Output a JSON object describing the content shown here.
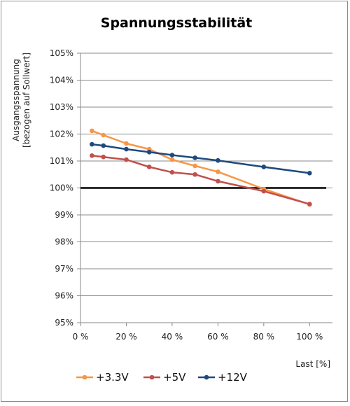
{
  "chart_data": {
    "type": "line",
    "title": "Spannungsstabilität",
    "xlabel": "Last [%]",
    "ylabel_lines": [
      "Ausgangsspannung",
      "[bezogen auf Sollwert]"
    ],
    "xlim": [
      0,
      110
    ],
    "ylim": [
      95,
      105
    ],
    "x_ticks": [
      0,
      20,
      40,
      60,
      80,
      100
    ],
    "x_tick_labels": [
      "0 %",
      "20 %",
      "40 %",
      "60 %",
      "80 %",
      "100 %"
    ],
    "y_ticks": [
      95,
      96,
      97,
      98,
      99,
      100,
      101,
      102,
      103,
      104,
      105
    ],
    "y_tick_labels": [
      "95%",
      "96%",
      "97%",
      "98%",
      "99%",
      "100%",
      "101%",
      "102%",
      "103%",
      "104%",
      "105%"
    ],
    "grid": "horizontal",
    "legend_position": "bottom",
    "reference_line": {
      "y": 100,
      "color": "#000000"
    },
    "series": [
      {
        "name": "+3.3V",
        "color": "#f79646",
        "x": [
          5,
          10,
          20,
          30,
          40,
          50,
          60,
          80,
          100
        ],
        "y": [
          102.12,
          101.96,
          101.65,
          101.44,
          101.05,
          100.82,
          100.6,
          99.96,
          99.39
        ]
      },
      {
        "name": "+5V",
        "color": "#c0504d",
        "x": [
          5,
          10,
          20,
          30,
          40,
          50,
          60,
          80,
          100
        ],
        "y": [
          101.2,
          101.15,
          101.05,
          100.78,
          100.58,
          100.5,
          100.25,
          99.88,
          99.4
        ]
      },
      {
        "name": "+12V",
        "color": "#1f497d",
        "x": [
          5,
          10,
          20,
          30,
          40,
          50,
          60,
          80,
          100
        ],
        "y": [
          101.62,
          101.57,
          101.44,
          101.33,
          101.22,
          101.12,
          101.02,
          100.78,
          100.55
        ]
      }
    ]
  }
}
